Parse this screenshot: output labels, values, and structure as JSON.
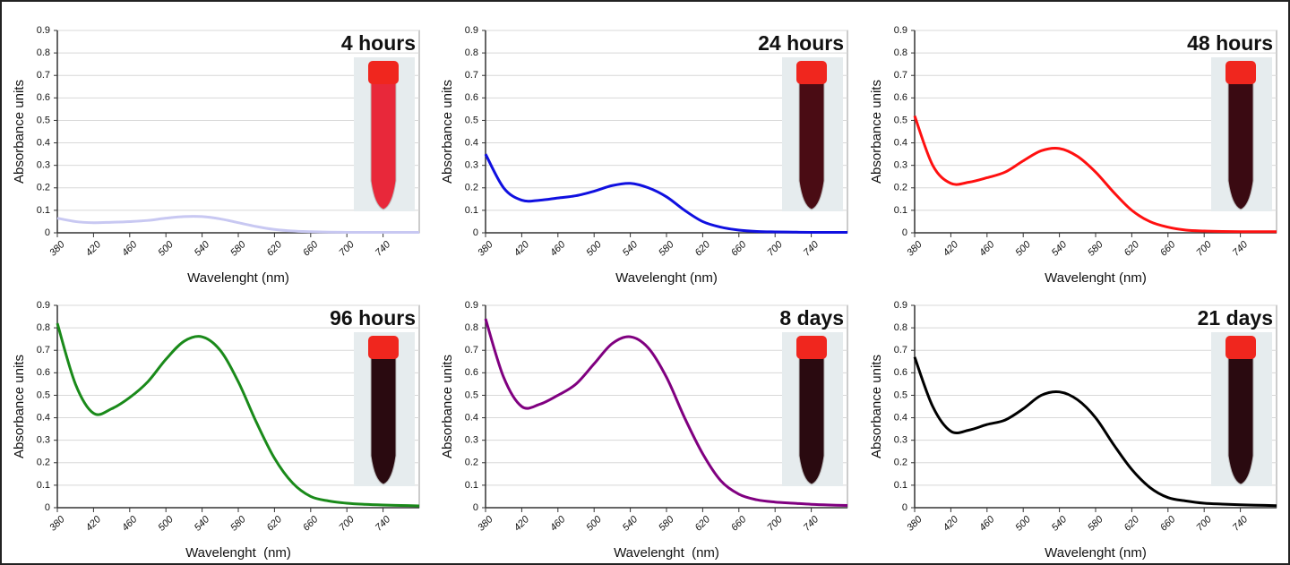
{
  "chart_data": [
    {
      "type": "line",
      "title": "4 hours",
      "xlabel": "Wavelenght (nm)",
      "ylabel": "Absorbance units",
      "x": [
        380,
        400,
        420,
        440,
        460,
        480,
        500,
        520,
        540,
        560,
        580,
        600,
        620,
        640,
        660,
        680,
        700,
        720,
        740,
        760,
        780
      ],
      "values": [
        0.065,
        0.05,
        0.045,
        0.047,
        0.05,
        0.055,
        0.065,
        0.072,
        0.072,
        0.062,
        0.045,
        0.028,
        0.015,
        0.008,
        0.005,
        0.003,
        0.002,
        0.002,
        0.002,
        0.002,
        0.002
      ],
      "color": "#c8c8f2",
      "xlim": [
        380,
        780
      ],
      "ylim": [
        0,
        0.9
      ],
      "xticks": [
        380,
        420,
        460,
        500,
        540,
        580,
        620,
        660,
        700,
        740
      ],
      "yticks": [
        0,
        0.1,
        0.2,
        0.3,
        0.4,
        0.5,
        0.6,
        0.7,
        0.8,
        0.9
      ],
      "grid": true
    },
    {
      "type": "line",
      "title": "24 hours",
      "xlabel": "Wavelenght (nm)",
      "ylabel": "Absorbance units",
      "x": [
        380,
        400,
        420,
        440,
        460,
        480,
        500,
        520,
        540,
        560,
        580,
        600,
        620,
        640,
        660,
        680,
        700,
        720,
        740,
        760,
        780
      ],
      "values": [
        0.35,
        0.2,
        0.145,
        0.145,
        0.155,
        0.165,
        0.185,
        0.21,
        0.22,
        0.2,
        0.16,
        0.1,
        0.05,
        0.025,
        0.012,
        0.006,
        0.004,
        0.003,
        0.002,
        0.002,
        0.002
      ],
      "color": "#1010e0",
      "xlim": [
        380,
        780
      ],
      "ylim": [
        0,
        0.9
      ],
      "xticks": [
        380,
        420,
        460,
        500,
        540,
        580,
        620,
        660,
        700,
        740
      ],
      "yticks": [
        0,
        0.1,
        0.2,
        0.3,
        0.4,
        0.5,
        0.6,
        0.7,
        0.8,
        0.9
      ],
      "grid": true
    },
    {
      "type": "line",
      "title": "48 hours",
      "xlabel": "Wavelenght (nm)",
      "ylabel": "Absorbance units",
      "x": [
        380,
        400,
        420,
        440,
        460,
        480,
        500,
        520,
        540,
        560,
        580,
        600,
        620,
        640,
        660,
        680,
        700,
        720,
        740,
        760,
        780
      ],
      "values": [
        0.52,
        0.3,
        0.22,
        0.225,
        0.245,
        0.27,
        0.32,
        0.365,
        0.375,
        0.34,
        0.27,
        0.18,
        0.1,
        0.05,
        0.025,
        0.012,
        0.008,
        0.006,
        0.005,
        0.005,
        0.005
      ],
      "color": "#ff1010",
      "xlim": [
        380,
        780
      ],
      "ylim": [
        0,
        0.9
      ],
      "xticks": [
        380,
        420,
        460,
        500,
        540,
        580,
        620,
        660,
        700,
        740
      ],
      "yticks": [
        0,
        0.1,
        0.2,
        0.3,
        0.4,
        0.5,
        0.6,
        0.7,
        0.8,
        0.9
      ],
      "grid": true
    },
    {
      "type": "line",
      "title": "96 hours",
      "xlabel": "Wavelenght  (nm)",
      "ylabel": "Absorbance units",
      "x": [
        380,
        400,
        420,
        440,
        460,
        480,
        500,
        520,
        540,
        560,
        580,
        600,
        620,
        640,
        660,
        680,
        700,
        720,
        740,
        760,
        780
      ],
      "values": [
        0.82,
        0.55,
        0.42,
        0.44,
        0.49,
        0.56,
        0.66,
        0.74,
        0.76,
        0.7,
        0.56,
        0.38,
        0.22,
        0.11,
        0.05,
        0.03,
        0.02,
        0.015,
        0.012,
        0.01,
        0.008
      ],
      "color": "#1a8a1a",
      "xlim": [
        380,
        780
      ],
      "ylim": [
        0,
        0.9
      ],
      "xticks": [
        380,
        420,
        460,
        500,
        540,
        580,
        620,
        660,
        700,
        740
      ],
      "yticks": [
        0,
        0.1,
        0.2,
        0.3,
        0.4,
        0.5,
        0.6,
        0.7,
        0.8,
        0.9
      ],
      "grid": true
    },
    {
      "type": "line",
      "title": "8 days",
      "xlabel": "Wavelenght  (nm)",
      "ylabel": "Absorbance units",
      "x": [
        380,
        400,
        420,
        440,
        460,
        480,
        500,
        520,
        540,
        560,
        580,
        600,
        620,
        640,
        660,
        680,
        700,
        720,
        740,
        760,
        780
      ],
      "values": [
        0.84,
        0.58,
        0.45,
        0.46,
        0.5,
        0.55,
        0.64,
        0.73,
        0.76,
        0.71,
        0.58,
        0.4,
        0.24,
        0.12,
        0.06,
        0.035,
        0.025,
        0.02,
        0.015,
        0.012,
        0.01
      ],
      "color": "#800080",
      "xlim": [
        380,
        780
      ],
      "ylim": [
        0,
        0.9
      ],
      "xticks": [
        380,
        420,
        460,
        500,
        540,
        580,
        620,
        660,
        700,
        740
      ],
      "yticks": [
        0,
        0.1,
        0.2,
        0.3,
        0.4,
        0.5,
        0.6,
        0.7,
        0.8,
        0.9
      ],
      "grid": true
    },
    {
      "type": "line",
      "title": "21 days",
      "xlabel": "Wavelenght (nm)",
      "ylabel": "Absorbance units",
      "x": [
        380,
        400,
        420,
        440,
        460,
        480,
        500,
        520,
        540,
        560,
        580,
        600,
        620,
        640,
        660,
        680,
        700,
        720,
        740,
        760,
        780
      ],
      "values": [
        0.67,
        0.45,
        0.34,
        0.345,
        0.37,
        0.39,
        0.44,
        0.5,
        0.515,
        0.48,
        0.4,
        0.28,
        0.17,
        0.09,
        0.045,
        0.03,
        0.02,
        0.016,
        0.013,
        0.011,
        0.009
      ],
      "color": "#000000",
      "xlim": [
        380,
        780
      ],
      "ylim": [
        0,
        0.9
      ],
      "xticks": [
        380,
        420,
        460,
        500,
        540,
        580,
        620,
        660,
        700,
        740
      ],
      "yticks": [
        0,
        0.1,
        0.2,
        0.3,
        0.4,
        0.5,
        0.6,
        0.7,
        0.8,
        0.9
      ],
      "grid": true
    }
  ]
}
